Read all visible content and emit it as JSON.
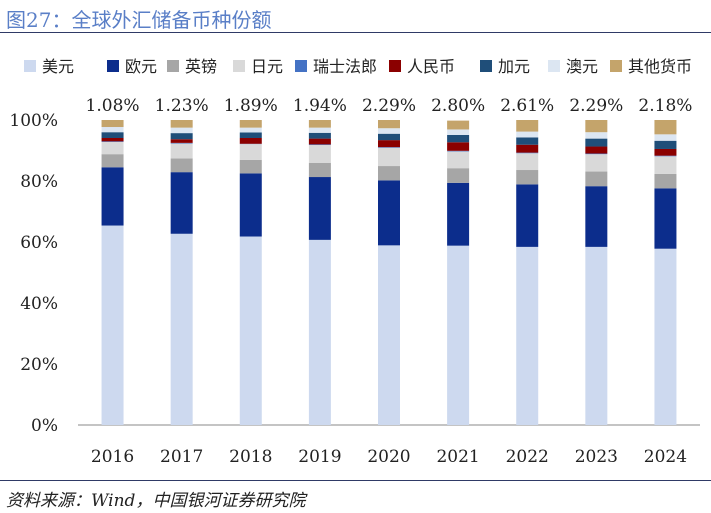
{
  "header": {
    "title": "图27：全球外汇储备币种份额"
  },
  "footer": {
    "source": "资料来源：Wind，中国银河证券研究院"
  },
  "chart_data": {
    "type": "bar",
    "stacked": true,
    "categories": [
      "2016",
      "2017",
      "2018",
      "2019",
      "2020",
      "2021",
      "2022",
      "2023",
      "2024"
    ],
    "series": [
      {
        "name": "美元",
        "color": "#cdd9ef",
        "values": [
          65.4,
          62.7,
          61.8,
          60.7,
          58.9,
          58.8,
          58.4,
          58.4,
          57.8
        ]
      },
      {
        "name": "欧元",
        "color": "#0c2d8c",
        "values": [
          19.1,
          20.2,
          20.7,
          20.6,
          21.3,
          20.6,
          20.5,
          19.9,
          19.8
        ]
      },
      {
        "name": "英镑",
        "color": "#a6a6a6",
        "values": [
          4.3,
          4.5,
          4.4,
          4.6,
          4.7,
          4.8,
          4.7,
          4.8,
          4.7
        ]
      },
      {
        "name": "日元",
        "color": "#d9d9d9",
        "values": [
          4.0,
          4.9,
          5.2,
          5.9,
          6.0,
          5.5,
          5.5,
          5.7,
          5.8
        ]
      },
      {
        "name": "瑞士法郎",
        "color": "#4472c4",
        "values": [
          0.2,
          0.2,
          0.1,
          0.2,
          0.2,
          0.2,
          0.2,
          0.2,
          0.2
        ]
      },
      {
        "name": "人民币",
        "color": "#8b0000",
        "values": [
          1.1,
          1.2,
          1.9,
          1.9,
          2.3,
          2.8,
          2.6,
          2.3,
          2.2
        ]
      },
      {
        "name": "加元",
        "color": "#1f4e79",
        "values": [
          1.9,
          2.0,
          1.8,
          1.9,
          2.1,
          2.4,
          2.4,
          2.6,
          2.7
        ]
      },
      {
        "name": "澳元",
        "color": "#dce6f2",
        "values": [
          1.7,
          1.8,
          1.6,
          1.7,
          1.8,
          1.8,
          1.9,
          2.1,
          2.1
        ]
      },
      {
        "name": "其他货币",
        "color": "#c4a46b",
        "values": [
          2.3,
          2.5,
          2.5,
          2.5,
          2.7,
          2.9,
          3.8,
          4.0,
          4.7
        ]
      }
    ],
    "data_labels": [
      "1.08%",
      "1.23%",
      "1.89%",
      "1.94%",
      "2.29%",
      "2.80%",
      "2.61%",
      "2.29%",
      "2.18%"
    ],
    "ylim": [
      0,
      100
    ],
    "yticks": [
      "0%",
      "20%",
      "40%",
      "60%",
      "80%",
      "100%"
    ],
    "grid": false,
    "legend_position": "top"
  }
}
